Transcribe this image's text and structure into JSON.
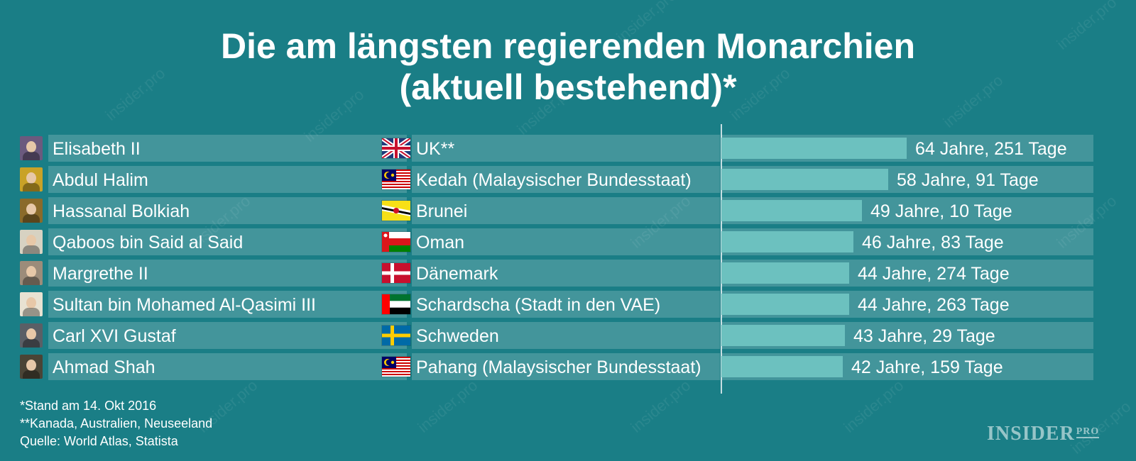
{
  "title_line1": "Die am längsten regierenden Monarchien",
  "title_line2": "(aktuell bestehend)*",
  "chart_data": {
    "type": "bar",
    "orientation": "horizontal",
    "value_unit": "Jahre",
    "rows": [
      {
        "name": "Elisabeth II",
        "country": "UK**",
        "years": 64.69,
        "label": "64 Jahre, 251 Tage",
        "flag": "uk-flag"
      },
      {
        "name": "Abdul Halim",
        "country": "Kedah (Malaysischer Bundesstaat)",
        "years": 58.25,
        "label": "58 Jahre, 91 Tage",
        "flag": "malaysia-flag"
      },
      {
        "name": "Hassanal Bolkiah",
        "country": "Brunei",
        "years": 49.03,
        "label": "49 Jahre, 10 Tage",
        "flag": "brunei-flag"
      },
      {
        "name": "Qaboos bin Said al Said",
        "country": "Oman",
        "years": 46.23,
        "label": "46 Jahre, 83 Tage",
        "flag": "oman-flag"
      },
      {
        "name": "Margrethe II",
        "country": "Dänemark",
        "years": 44.75,
        "label": "44 Jahre, 274 Tage",
        "flag": "denmark-flag"
      },
      {
        "name": "Sultan bin Mohamed Al-Qasimi III",
        "country": "Schardscha (Stadt in den VAE)",
        "years": 44.72,
        "label": "44 Jahre, 263 Tage",
        "flag": "uae-flag"
      },
      {
        "name": "Carl XVI Gustaf",
        "country": "Schweden",
        "years": 43.08,
        "label": "43 Jahre, 29 Tage",
        "flag": "sweden-flag"
      },
      {
        "name": "Ahmad Shah",
        "country": "Pahang (Malaysischer Bundesstaat)",
        "years": 42.44,
        "label": "42 Jahre, 159 Tage",
        "flag": "malaysia-flag"
      }
    ],
    "xlim": [
      0,
      130
    ]
  },
  "footnotes": [
    "*Stand am 14. Okt 2016",
    "**Kanada, Australien, Neuseeland",
    "Quelle: World Atlas, Statista"
  ],
  "logo": {
    "main": "INSIDER",
    "sub": "PRO"
  },
  "watermark_text": "insider.pro",
  "colors": {
    "background": "#1a7e86",
    "bar": "#6cc1bf",
    "text": "#ffffff"
  }
}
